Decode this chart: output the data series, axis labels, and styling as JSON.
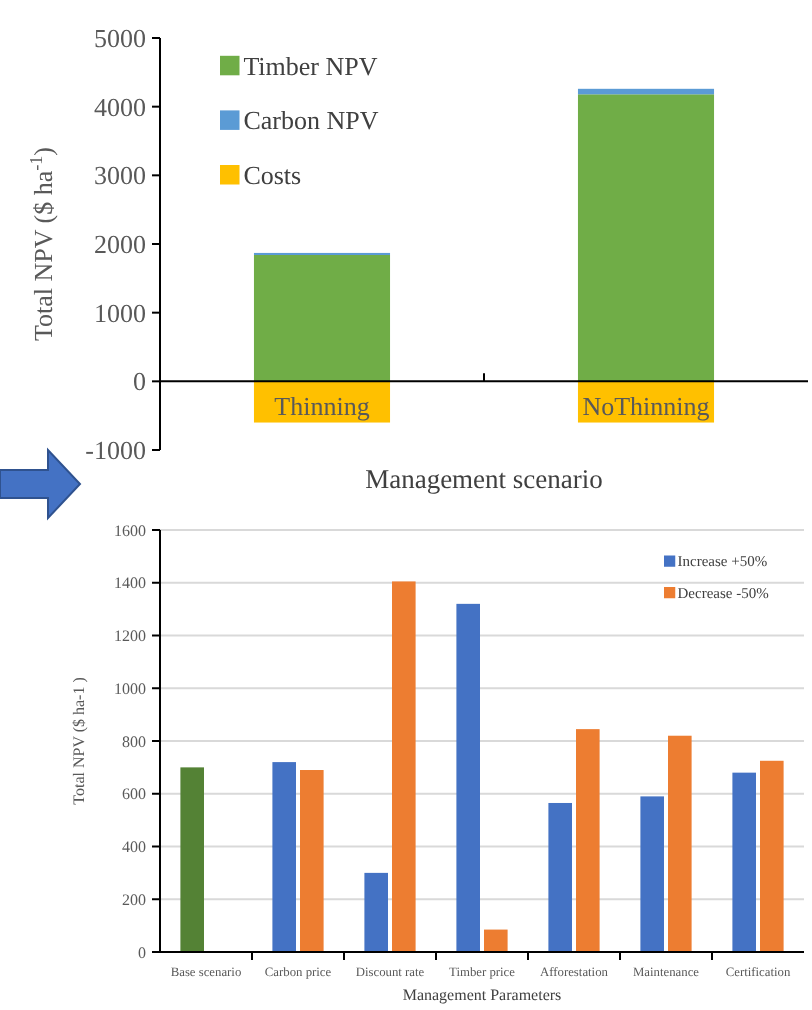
{
  "chart_data": [
    {
      "type": "bar",
      "stacked": true,
      "categories": [
        "Thinning",
        "NoThinning"
      ],
      "xlabel": "Management scenario",
      "ylabel": "Total NPV ($ ha$^{-1}$)",
      "ylim": [
        -1000,
        5000
      ],
      "yticks": [
        -1000,
        0,
        1000,
        2000,
        3000,
        4000,
        5000
      ],
      "grid": false,
      "legend": "top left",
      "series": [
        {
          "name": "Timber NPV",
          "color": "#70ad47",
          "values": [
            1840,
            4180
          ]
        },
        {
          "name": "Carbon NPV",
          "color": "#5b9bd5",
          "values": [
            30,
            80
          ]
        },
        {
          "name": "Costs",
          "color": "#ffc000",
          "values": [
            -600,
            -600
          ]
        }
      ]
    },
    {
      "type": "bar",
      "categories": [
        "Base scenario",
        "Carbon price",
        "Discount rate",
        "Timber price",
        "Afforestation",
        "Maintenance",
        "Certification"
      ],
      "xlabel": "Management Parameters",
      "ylabel": "Total NPV ($ ha-1 )",
      "ylim": [
        0,
        1600
      ],
      "yticks": [
        0,
        200,
        400,
        600,
        800,
        1000,
        1200,
        1400,
        1600
      ],
      "grid": "y",
      "legend": "top right",
      "series": [
        {
          "name": "Increase +50%",
          "color": "#4472c4",
          "colors": [
            "#548235",
            "#4472c4",
            "#4472c4",
            "#4472c4",
            "#4472c4",
            "#4472c4",
            "#4472c4"
          ],
          "values": [
            700,
            720,
            300,
            1320,
            565,
            590,
            680
          ]
        },
        {
          "name": "Decrease -50%",
          "color": "#ed7d31",
          "values": [
            null,
            690,
            1405,
            85,
            845,
            820,
            725
          ]
        }
      ]
    }
  ]
}
